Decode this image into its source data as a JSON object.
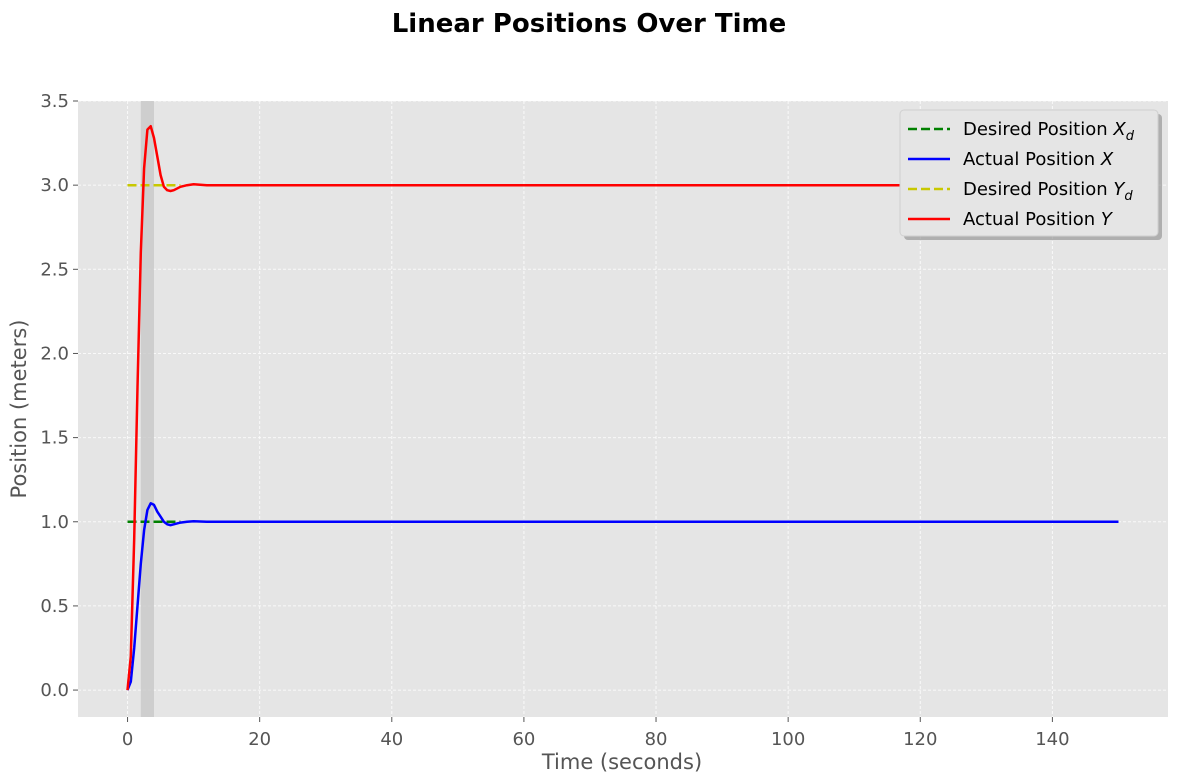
{
  "chart_data": {
    "type": "line",
    "title": "Linear Positions Over Time",
    "xlabel": "Time (seconds)",
    "ylabel": "Position (meters)",
    "xlim": [
      -7.5,
      157.5
    ],
    "ylim": [
      -0.16,
      3.5
    ],
    "xticks": [
      0,
      20,
      40,
      60,
      80,
      100,
      120,
      140
    ],
    "yticks": [
      0.0,
      0.5,
      1.0,
      1.5,
      2.0,
      2.5,
      3.0,
      3.5
    ],
    "xtick_labels": [
      "0",
      "20",
      "40",
      "60",
      "80",
      "100",
      "120",
      "140"
    ],
    "ytick_labels": [
      "0.0",
      "0.5",
      "1.0",
      "1.5",
      "2.0",
      "2.5",
      "3.0",
      "3.5"
    ],
    "grid": true,
    "legend_position": "top-right",
    "shaded_region": {
      "x_start": 2,
      "x_end": 4,
      "color": "#c8c8c8"
    },
    "series": [
      {
        "name": "Desired Position X_d",
        "label_main": "Desired Position ",
        "label_var": "X",
        "label_sub": "d",
        "color": "#008000",
        "dash": true,
        "x": [
          0,
          8
        ],
        "y": [
          1.0,
          1.0
        ]
      },
      {
        "name": "Actual Position X",
        "label_main": "Actual Position ",
        "label_var": "X",
        "label_sub": "",
        "color": "#0000ff",
        "dash": false,
        "x": [
          0,
          0.5,
          1,
          1.5,
          2,
          2.5,
          3,
          3.5,
          4,
          4.5,
          5,
          5.5,
          6,
          6.5,
          7,
          8,
          9,
          10,
          12,
          15,
          20,
          30,
          50,
          80,
          110,
          150
        ],
        "y": [
          0,
          0.05,
          0.25,
          0.5,
          0.75,
          0.95,
          1.07,
          1.11,
          1.1,
          1.06,
          1.03,
          1.0,
          0.985,
          0.98,
          0.985,
          0.995,
          1.0,
          1.003,
          1.0,
          1.0,
          1.0,
          1.0,
          1.0,
          1.0,
          1.0,
          1.0
        ]
      },
      {
        "name": "Desired Position Y_d",
        "label_main": "Desired Position ",
        "label_var": "Y",
        "label_sub": "d",
        "color": "#c8c800",
        "dash": true,
        "x": [
          0,
          8
        ],
        "y": [
          3.0,
          3.0
        ]
      },
      {
        "name": "Actual Position Y",
        "label_main": "Actual Position ",
        "label_var": "Y",
        "label_sub": "",
        "color": "#ff0000",
        "dash": false,
        "x": [
          0,
          0.5,
          1,
          1.5,
          2,
          2.5,
          3,
          3.5,
          4,
          4.5,
          5,
          5.5,
          6,
          6.5,
          7,
          8,
          9,
          10,
          12,
          15,
          20,
          30,
          50,
          80,
          110,
          150
        ],
        "y": [
          0,
          0.2,
          0.9,
          1.8,
          2.6,
          3.1,
          3.33,
          3.35,
          3.28,
          3.17,
          3.06,
          2.99,
          2.97,
          2.965,
          2.97,
          2.99,
          3.0,
          3.005,
          3.0,
          3.0,
          3.0,
          3.0,
          3.0,
          3.0,
          3.0,
          3.0
        ]
      }
    ]
  }
}
